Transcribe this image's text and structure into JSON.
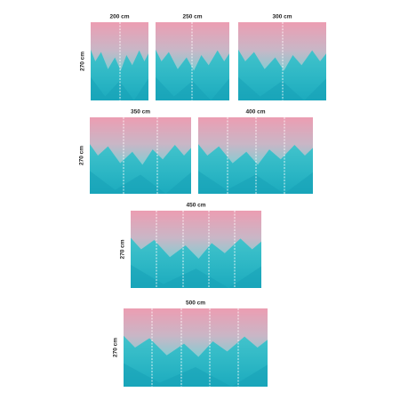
{
  "panels": [
    {
      "width_label": "200 cm",
      "height_label": "270 cm"
    },
    {
      "width_label": "250 cm"
    },
    {
      "width_label": "300 cm"
    },
    {
      "width_label": "350 cm",
      "height_label": "270 cm"
    },
    {
      "width_label": "400 cm"
    },
    {
      "width_label": "450 cm",
      "height_label": "270 cm"
    },
    {
      "width_label": "500 cm",
      "height_label": "270 cm"
    }
  ]
}
